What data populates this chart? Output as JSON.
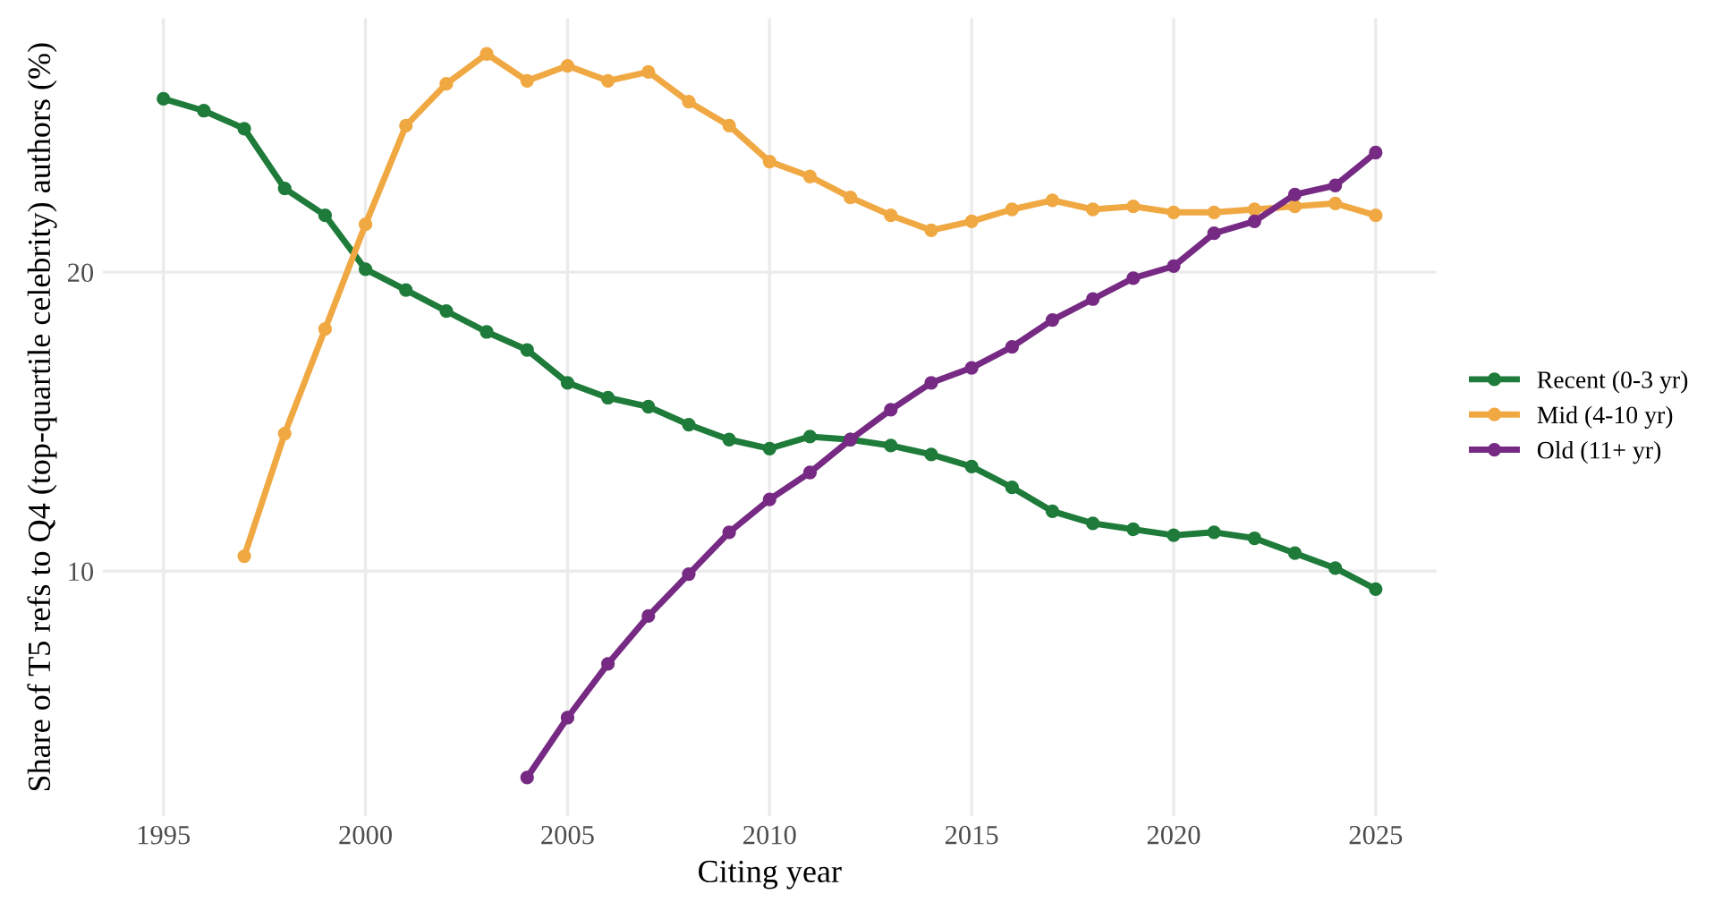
{
  "chart_data": {
    "type": "line",
    "xlabel": "Citing year",
    "ylabel": "Share of T5 refs to Q4 (top-quartile celebrity) authors (%)",
    "x": [
      1995,
      1996,
      1997,
      1998,
      1999,
      2000,
      2001,
      2002,
      2003,
      2004,
      2005,
      2006,
      2007,
      2008,
      2009,
      2010,
      2011,
      2012,
      2013,
      2014,
      2015,
      2016,
      2017,
      2018,
      2019,
      2020,
      2021,
      2022,
      2023,
      2024,
      2025
    ],
    "series": [
      {
        "name": "Recent (0-3 yr)",
        "color": "#1e7b3a",
        "values": [
          25.8,
          25.4,
          24.8,
          22.8,
          21.9,
          20.1,
          19.4,
          18.7,
          18.0,
          17.4,
          16.3,
          15.8,
          15.5,
          14.9,
          14.4,
          14.1,
          14.5,
          14.4,
          14.2,
          13.9,
          13.5,
          12.8,
          12.0,
          11.6,
          11.4,
          11.2,
          11.3,
          11.1,
          10.6,
          10.1,
          9.4
        ]
      },
      {
        "name": "Mid (4-10 yr)",
        "color": "#f0a842",
        "values": [
          null,
          null,
          10.5,
          14.6,
          18.1,
          21.6,
          24.9,
          26.3,
          27.3,
          26.4,
          26.9,
          26.4,
          26.7,
          25.7,
          24.9,
          23.7,
          23.2,
          22.5,
          21.9,
          21.4,
          21.7,
          22.1,
          22.4,
          22.1,
          22.2,
          22.0,
          22.0,
          22.1,
          22.2,
          22.3,
          21.9
        ]
      },
      {
        "name": "Old (11+ yr)",
        "color": "#762a83",
        "values": [
          null,
          null,
          null,
          null,
          null,
          null,
          null,
          null,
          null,
          3.1,
          5.1,
          6.9,
          8.5,
          9.9,
          11.3,
          12.4,
          13.3,
          14.4,
          15.4,
          16.3,
          16.8,
          17.5,
          18.4,
          19.1,
          19.8,
          20.2,
          21.3,
          21.7,
          22.6,
          22.9,
          24.0
        ]
      }
    ],
    "xlim": [
      1993.5,
      2026.5
    ],
    "xticks": [
      1995,
      2000,
      2005,
      2010,
      2015,
      2020,
      2025
    ],
    "ylim": [
      1.8,
      28.5
    ],
    "yticks": [
      10,
      20
    ],
    "grid": true,
    "legend": "right",
    "marker": "circle",
    "line_style": "solid"
  }
}
